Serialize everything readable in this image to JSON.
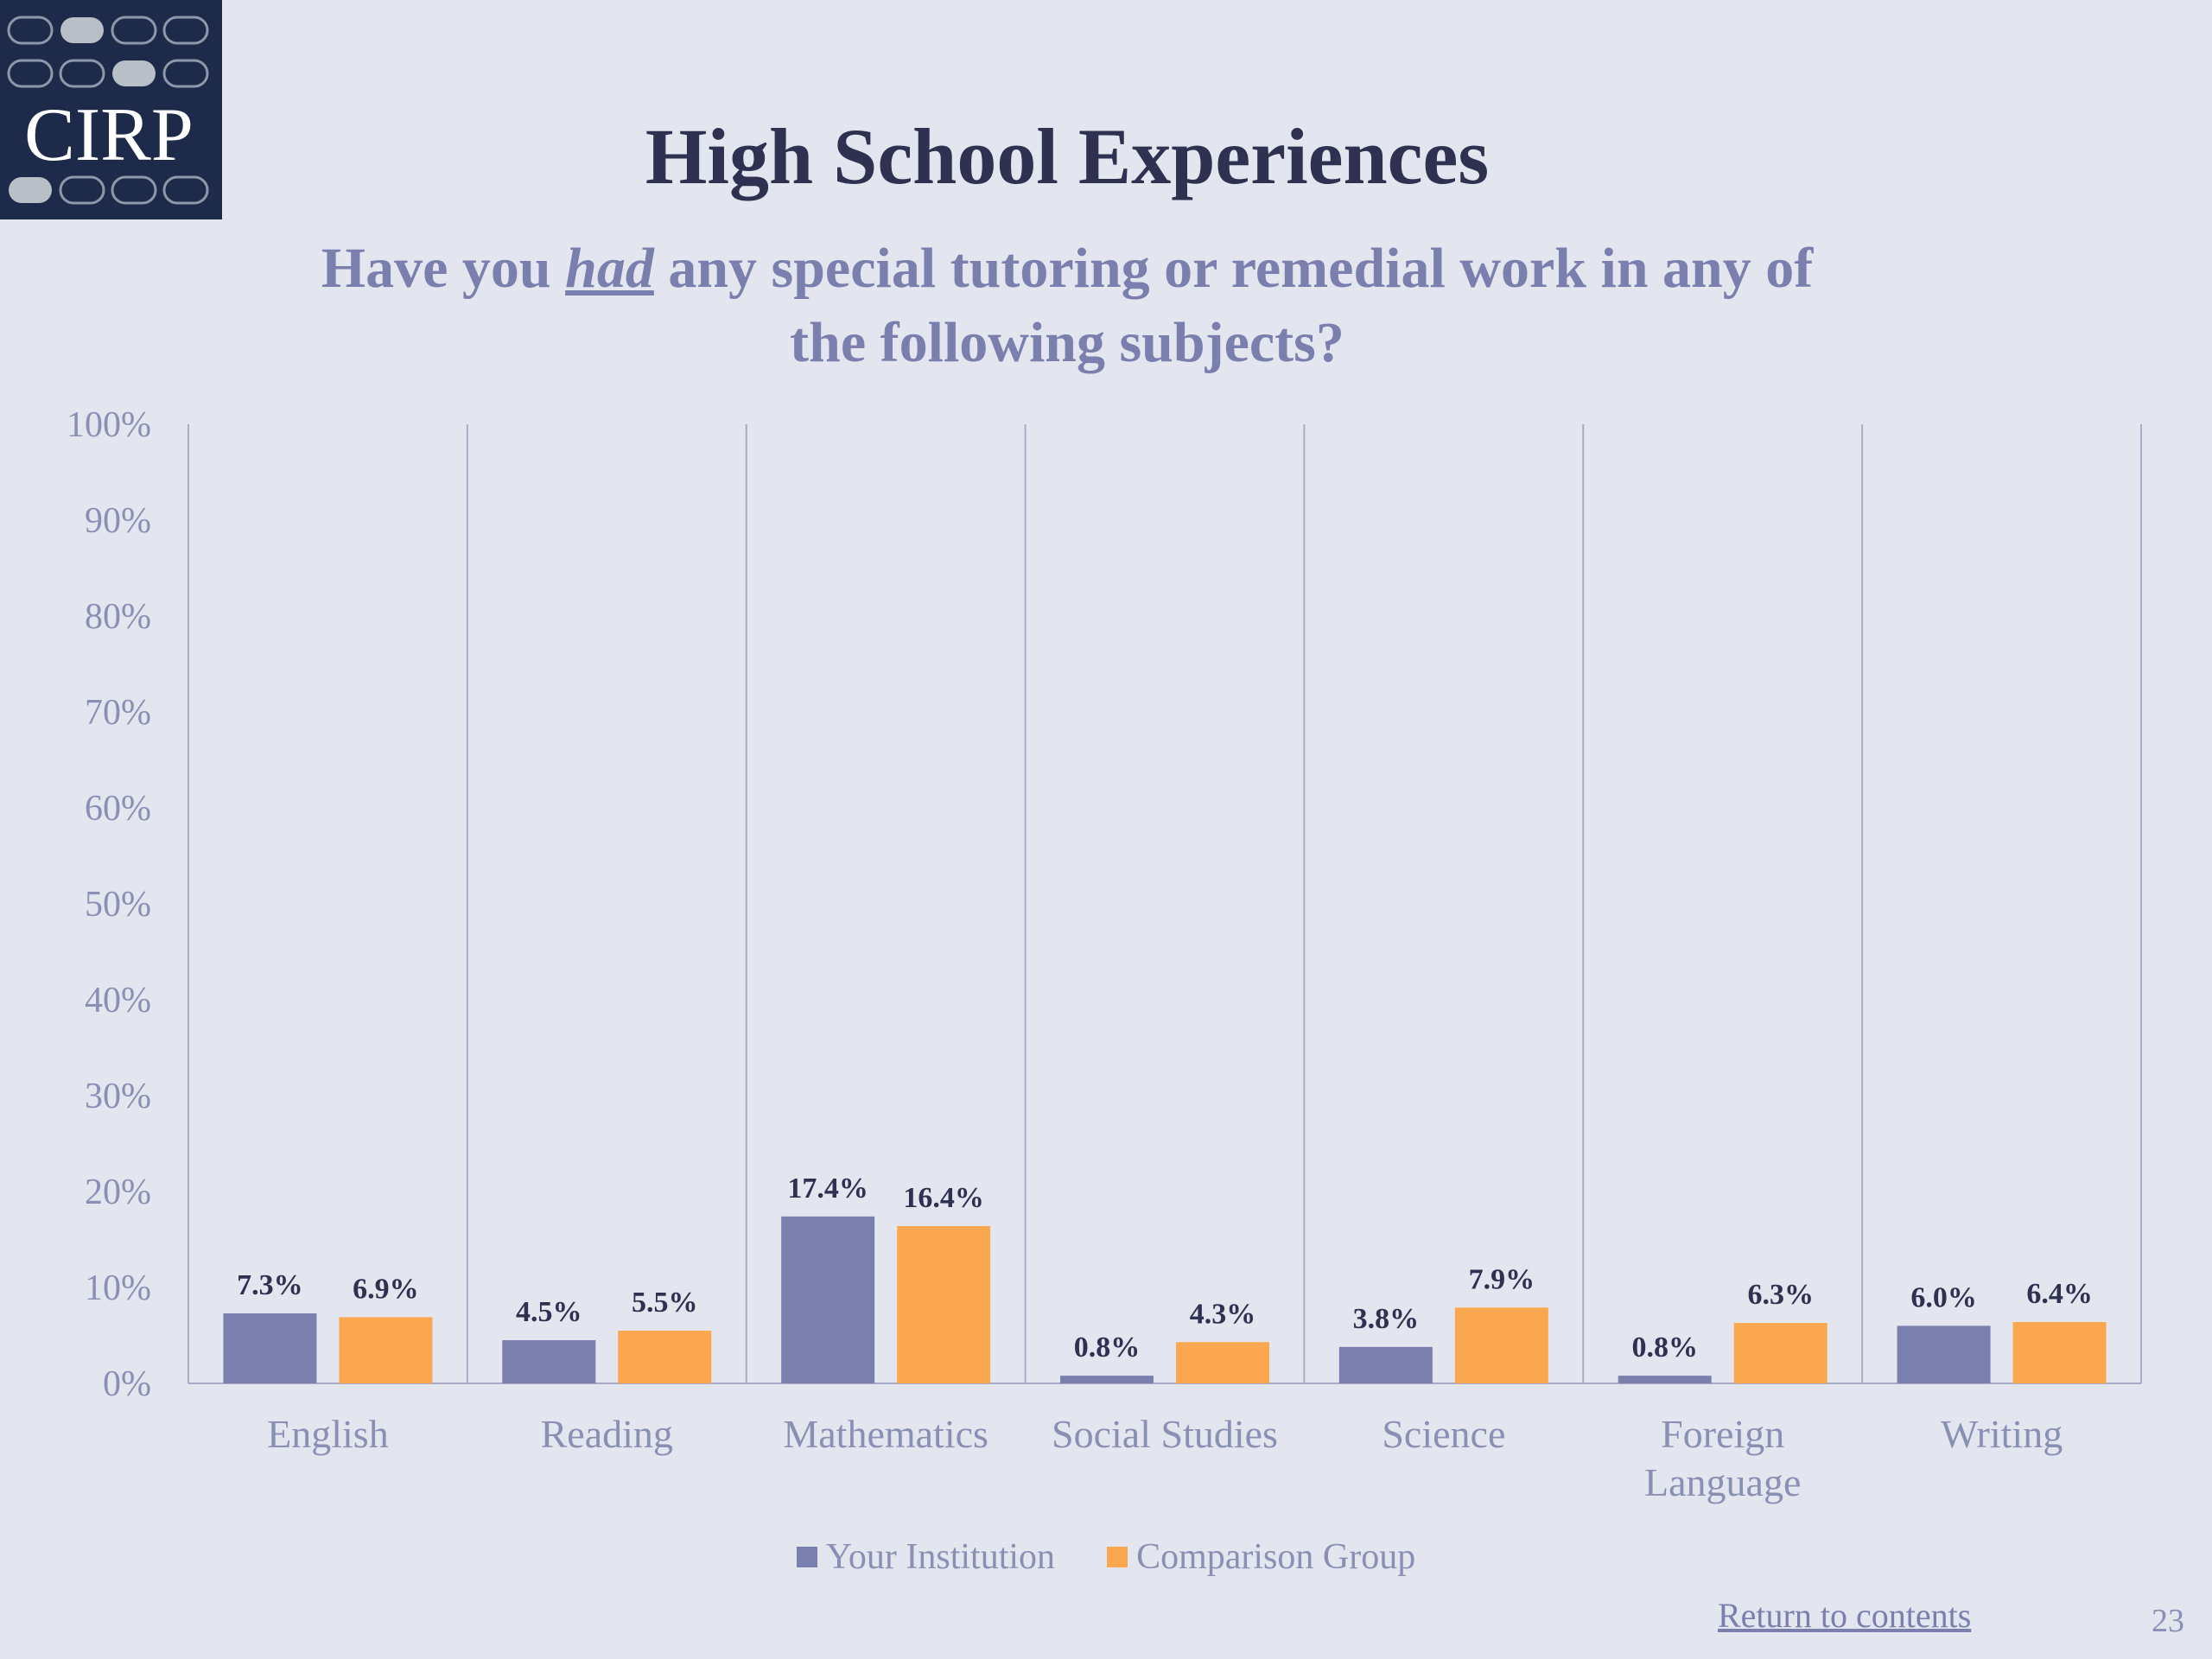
{
  "logo": {
    "text": "CIRP"
  },
  "title": "High School Experiences",
  "subtitle": {
    "part1": "Have you ",
    "emphasis": "had",
    "part2": " any special tutoring or remedial work in any of the following subjects?"
  },
  "colors": {
    "your_institution": "#7a7fae",
    "comparison_group": "#fba74f"
  },
  "chart_data": {
    "type": "bar",
    "categories": [
      "English",
      "Reading",
      "Mathematics",
      "Social Studies",
      "Science",
      "Foreign Language",
      "Writing"
    ],
    "series": [
      {
        "name": "Your Institution",
        "values": [
          7.3,
          4.5,
          17.4,
          0.8,
          3.8,
          0.8,
          6.0
        ],
        "labels": [
          "7.3%",
          "4.5%",
          "17.4%",
          "0.8%",
          "3.8%",
          "0.8%",
          "6.0%"
        ]
      },
      {
        "name": "Comparison Group",
        "values": [
          6.9,
          5.5,
          16.4,
          4.3,
          7.9,
          6.3,
          6.4
        ],
        "labels": [
          "6.9%",
          "5.5%",
          "16.4%",
          "4.3%",
          "7.9%",
          "6.3%",
          "6.4%"
        ]
      }
    ],
    "ylim": [
      0,
      100
    ],
    "yticks": [
      "0%",
      "10%",
      "20%",
      "30%",
      "40%",
      "50%",
      "60%",
      "70%",
      "80%",
      "90%",
      "100%"
    ],
    "grid": "vertical category separators",
    "legend": "bottom-center"
  },
  "footer": {
    "return_link": "Return to contents",
    "page_number": "23"
  }
}
